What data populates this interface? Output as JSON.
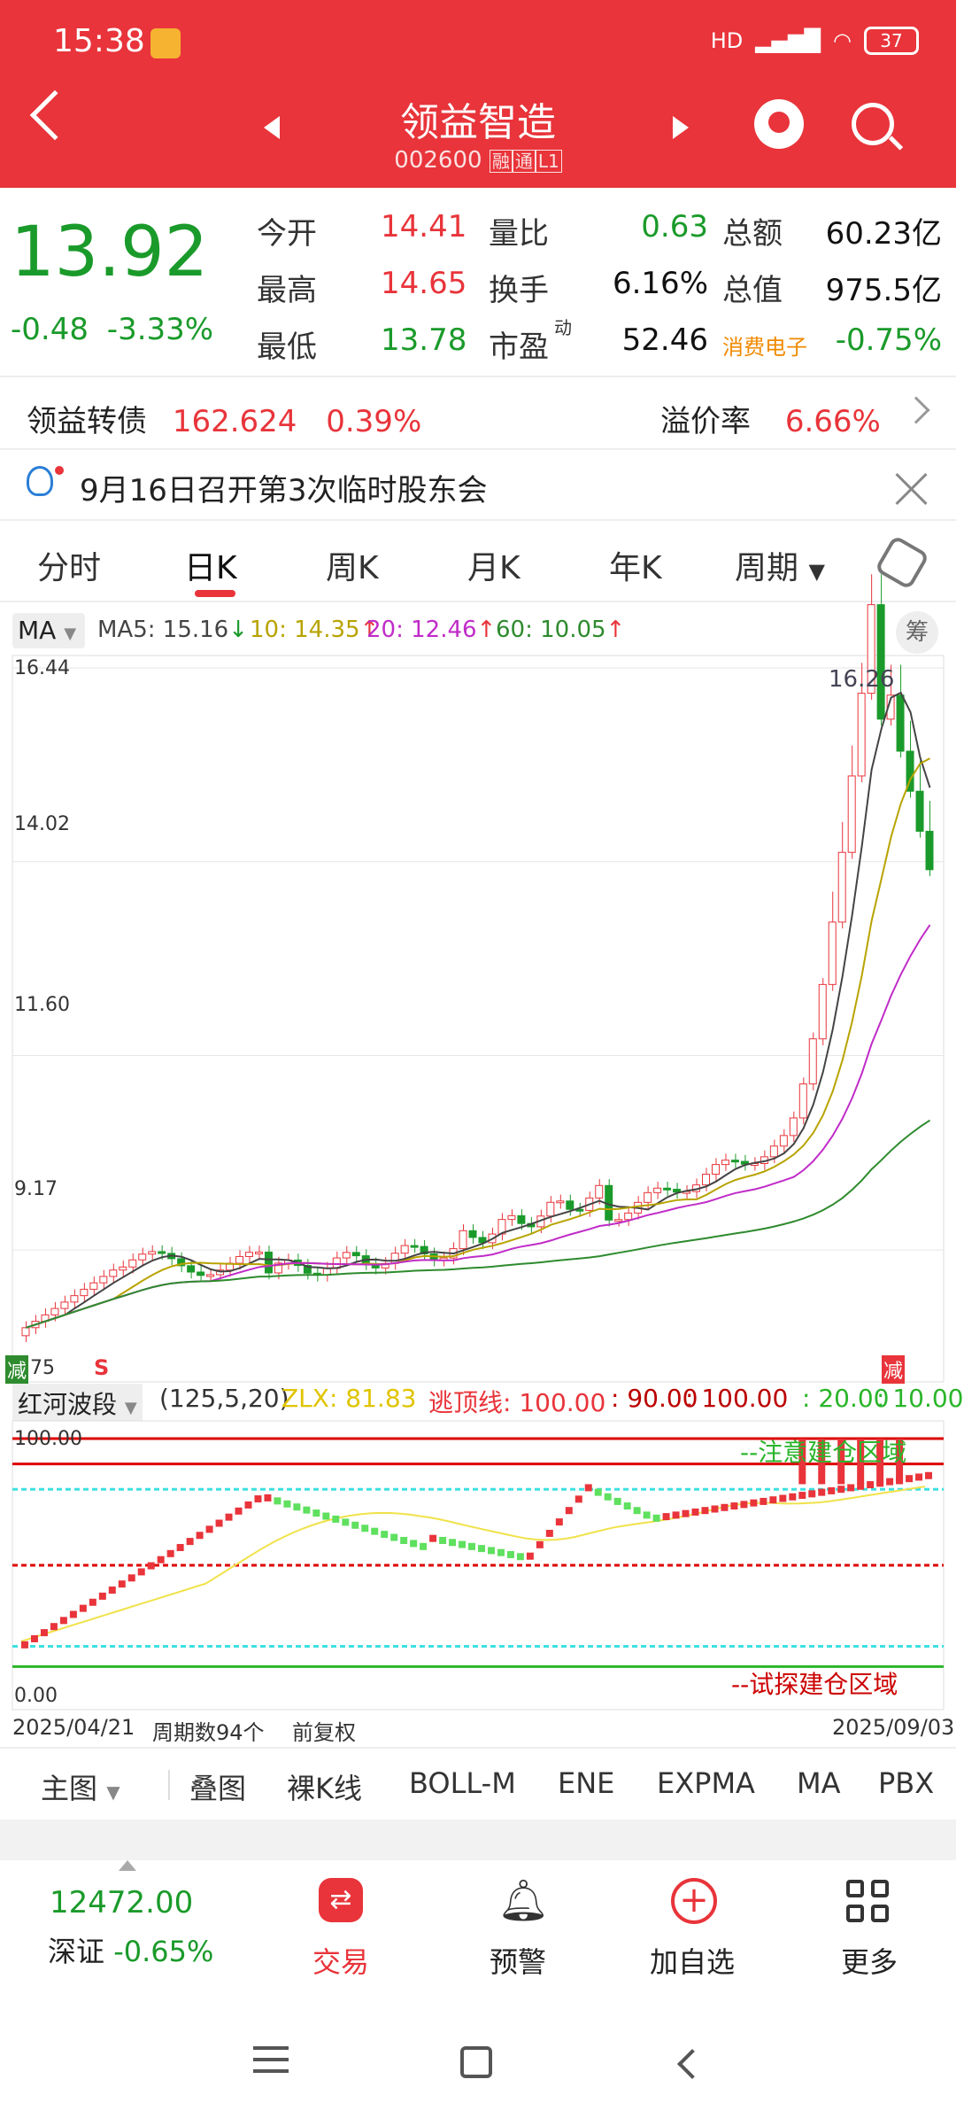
{
  "status": {
    "time": "15:38",
    "hd": "HD",
    "battery": "37"
  },
  "header": {
    "title": "领益智造",
    "code": "002600",
    "tag1": "融",
    "tag2": "通",
    "tag3": "L1"
  },
  "quote": {
    "price": "13.92",
    "change": "-0.48",
    "change_pct": "-3.33%",
    "rows": [
      [
        {
          "l": "今开",
          "v": "14.41",
          "c": "red"
        },
        {
          "l": "量比",
          "v": "0.63",
          "c": "green"
        },
        {
          "l": "总额",
          "v": "60.23亿",
          "c": "dark"
        }
      ],
      [
        {
          "l": "最高",
          "v": "14.65",
          "c": "red"
        },
        {
          "l": "换手",
          "v": "6.16%",
          "c": "dark"
        },
        {
          "l": "总值",
          "v": "975.5亿",
          "c": "dark"
        }
      ],
      [
        {
          "l": "最低",
          "v": "13.78",
          "c": "green"
        },
        {
          "l": "市盈",
          "v": "52.46",
          "c": "dark"
        },
        {
          "l": "消费电子",
          "v": "-0.75%",
          "c": "green"
        }
      ]
    ],
    "pe_sup": "动"
  },
  "bond": {
    "label": "领益转债",
    "price": "162.624",
    "pct": "0.39%",
    "premium_label": "溢价率",
    "premium": "6.66%"
  },
  "notice": {
    "text": "9月16日召开第3次临时股东会"
  },
  "tabs": {
    "items": [
      "分时",
      "日K",
      "周K",
      "月K",
      "年K",
      "周期"
    ]
  },
  "ma": {
    "selector": "MA",
    "ma5": "MA5: 15.16",
    "ma10": "10: 14.35",
    "ma20": "20: 12.46",
    "ma60": "60: 10.05",
    "chou": "筹"
  },
  "price_axis": {
    "labels": [
      "16.44",
      "14.02",
      "11.60",
      "9.17"
    ],
    "low_label": "75",
    "high_label": "16.26",
    "jian": "减",
    "s": "S",
    "top_tag": "减"
  },
  "indicator": {
    "name": "红河波段",
    "params": "(125,5,20)",
    "zlx": "ZLX: 81.83",
    "escape": "逃顶线: 100.00",
    "v90": ": 90.00",
    "v100": ": 100.00",
    "v20": ": 20.00",
    "v10": ": 10.00",
    "top_label": "100.00",
    "bottom_label": "0.00",
    "attention_label": "--注意建仓区域",
    "trial_label": "--试探建仓区域"
  },
  "axis_footer": {
    "start": "2025/04/21",
    "count": "周期数94个",
    "adjust": "前复权",
    "end": "2025/09/03"
  },
  "bottom_tabs": [
    "主图",
    "叠图",
    "裸K线",
    "BOLL-M",
    "ENE",
    "EXPMA",
    "MA",
    "PBX"
  ],
  "nav": {
    "index_value": "12472.00",
    "index_name": "深证",
    "index_pct": "-0.65%",
    "trade": "交易",
    "alert": "预警",
    "add": "加自选",
    "more": "更多"
  },
  "chart_data": {
    "type": "candlestick",
    "x_range": [
      "2025/04/21",
      "2025/09/03"
    ],
    "y_ticks": [
      16.44,
      14.02,
      11.6,
      9.17
    ],
    "highest_label": 16.26,
    "ma": {
      "MA5": 15.16,
      "MA10": 14.35,
      "MA20": 12.46,
      "MA60": 10.05
    }
  }
}
